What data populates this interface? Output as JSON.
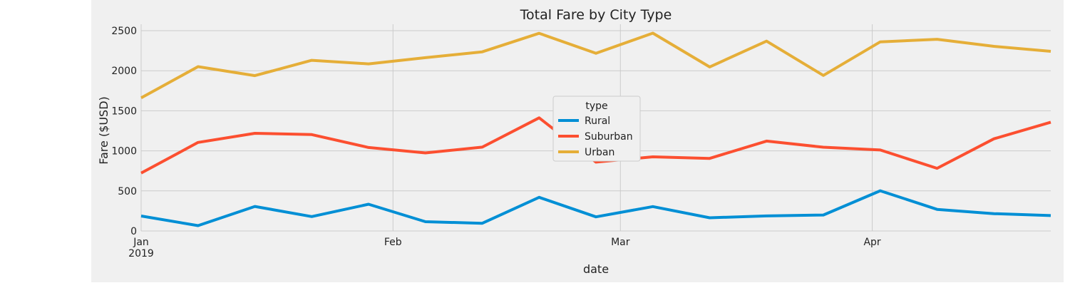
{
  "chart_data": {
    "type": "line",
    "title": "Total Fare by City Type",
    "xlabel": "date",
    "ylabel": "Fare ($USD)",
    "ylim": [
      0,
      2600
    ],
    "yticks": [
      0,
      500,
      1000,
      1500,
      2000,
      2500
    ],
    "grid": true,
    "x": [
      "2019-01-06",
      "2019-01-13",
      "2019-01-20",
      "2019-01-27",
      "2019-02-03",
      "2019-02-10",
      "2019-02-17",
      "2019-02-24",
      "2019-03-03",
      "2019-03-10",
      "2019-03-17",
      "2019-03-24",
      "2019-03-31",
      "2019-04-07",
      "2019-04-14",
      "2019-04-21",
      "2019-04-28"
    ],
    "x_ticks": [
      {
        "label": "Jan",
        "sublabel": "2019",
        "index": 0
      },
      {
        "label": "Feb",
        "sublabel": "",
        "index": 4.43
      },
      {
        "label": "Mar",
        "sublabel": "",
        "index": 8.43
      },
      {
        "label": "Apr",
        "sublabel": "",
        "index": 12.86
      }
    ],
    "legend": {
      "title": "type",
      "position": "center"
    },
    "series": [
      {
        "name": "Rural",
        "color": "#008fd5",
        "values": [
          187,
          67,
          306,
          180,
          334,
          116,
          96,
          420,
          176,
          304,
          165,
          188,
          199,
          502,
          270,
          216,
          192
        ]
      },
      {
        "name": "Suburban",
        "color": "#fc4f30",
        "values": [
          722,
          1105,
          1219,
          1203,
          1042,
          974,
          1046,
          1412,
          859,
          925,
          906,
          1122,
          1045,
          1011,
          782,
          1150,
          1358
        ]
      },
      {
        "name": "Urban",
        "color": "#e5ae38",
        "values": [
          1661,
          2051,
          1939,
          2130,
          2085,
          2163,
          2236,
          2467,
          2218,
          2469,
          2047,
          2369,
          1941,
          2360,
          2392,
          2304,
          2242
        ]
      }
    ]
  }
}
